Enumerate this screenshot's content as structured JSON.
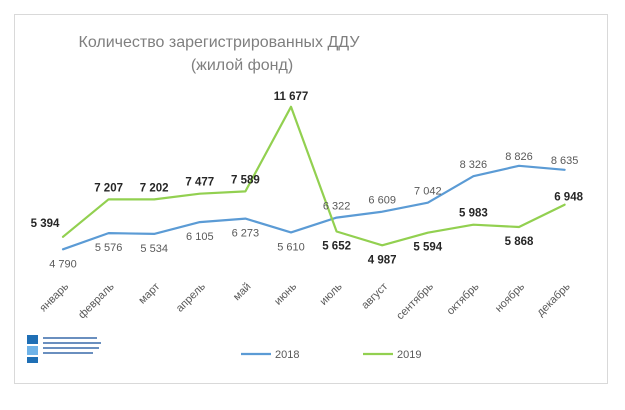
{
  "chart_data": {
    "type": "line",
    "title": "Количество зарегистрированных ДДУ",
    "subtitle": "(жилой фонд)",
    "categories": [
      "январь",
      "февраль",
      "март",
      "апрель",
      "май",
      "июнь",
      "июль",
      "август",
      "сентябрь",
      "октябрь",
      "ноябрь",
      "декабрь"
    ],
    "series": [
      {
        "name": "2018",
        "color": "#5b9bd5",
        "values": [
          4790,
          5576,
          5534,
          6105,
          6273,
          5610,
          6322,
          6609,
          7042,
          8326,
          8826,
          8635
        ],
        "labels": [
          "4 790",
          "5 576",
          "5 534",
          "6 105",
          "6 273",
          "5 610",
          "6 322",
          "6 609",
          "7 042",
          "8 326",
          "8 826",
          "8 635"
        ]
      },
      {
        "name": "2019",
        "color": "#92d050",
        "values": [
          5394,
          7207,
          7202,
          7477,
          7589,
          11677,
          5652,
          4987,
          5594,
          5983,
          5868,
          6948
        ],
        "labels": [
          "5 394",
          "7 207",
          "7 202",
          "7 477",
          "7 589",
          "11 677",
          "5 652",
          "4 987",
          "5 594",
          "5 983",
          "5 868",
          "6 948"
        ]
      }
    ],
    "legend_position": "bottom",
    "grid": false
  },
  "logo": {
    "text": "Управление Федеральной службы государственной регистрации, кадастра и картографии по Москве",
    "icon": "rosreestr-logo-icon"
  }
}
